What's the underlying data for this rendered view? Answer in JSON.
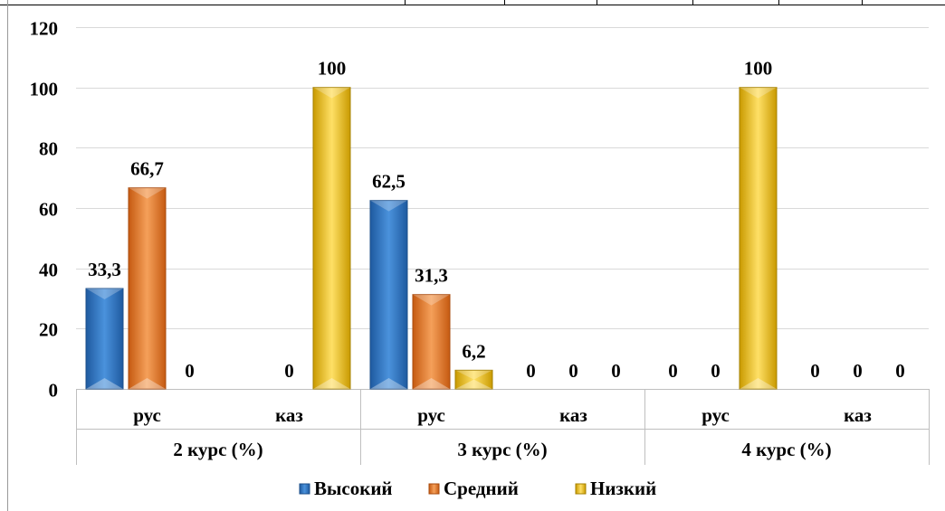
{
  "chart_data": {
    "type": "bar",
    "groups": [
      {
        "label": "2 курс (%)",
        "categories": [
          "рус",
          "каз"
        ]
      },
      {
        "label": "3 курс (%)",
        "categories": [
          "рус",
          "каз"
        ]
      },
      {
        "label": "4 курс (%)",
        "categories": [
          "рус",
          "каз"
        ]
      }
    ],
    "series": [
      {
        "name": "Высокий",
        "color": "#2f74c0",
        "values": [
          33.3,
          null,
          62.5,
          0,
          0,
          0
        ]
      },
      {
        "name": "Средний",
        "color": "#ed7d31",
        "values": [
          66.7,
          0,
          31.3,
          0,
          0,
          0
        ]
      },
      {
        "name": "Низкий",
        "color": "#f2c200",
        "values": [
          0,
          100,
          6.2,
          0,
          100,
          0
        ]
      }
    ],
    "data_labels": [
      [
        "33,3",
        "",
        "62,5",
        "0",
        "0",
        "0"
      ],
      [
        "66,7",
        "0",
        "31,3",
        "0",
        "0",
        "0"
      ],
      [
        "0",
        "100",
        "6,2",
        "0",
        "100",
        "0"
      ]
    ],
    "y_ticks": [
      "0",
      "20",
      "40",
      "60",
      "80",
      "100",
      "120"
    ],
    "ylim": [
      0,
      120
    ],
    "grid": true,
    "legend_position": "bottom",
    "title": "",
    "xlabel": "",
    "ylabel": ""
  }
}
